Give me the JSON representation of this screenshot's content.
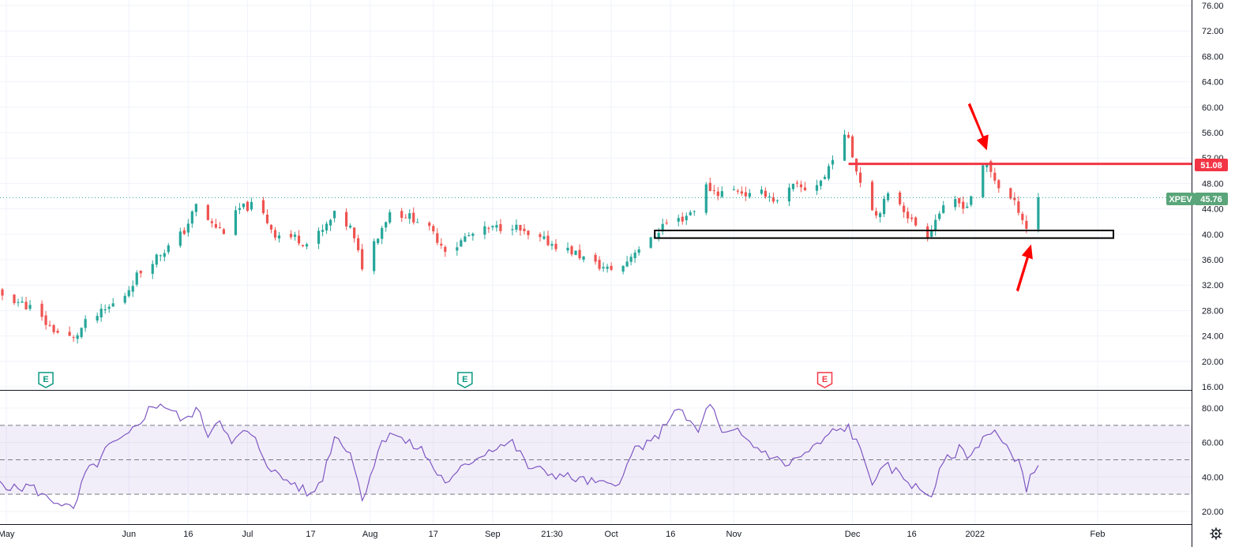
{
  "chart_data": [
    {
      "type": "candlestick",
      "symbol": "XPEV",
      "last_price": "45.76",
      "resistance_label": "51.08",
      "resistance_level": 51.08,
      "support_zone": [
        39.4,
        40.6
      ],
      "support_zone_span": [
        "2021-10-12",
        "2022-02-05"
      ],
      "resistance_span": [
        "2021-11-30",
        "2022-02-16"
      ],
      "ylim": [
        16,
        76
      ],
      "y_tick_labels": [
        "76.00",
        "72.00",
        "68.00",
        "64.00",
        "60.00",
        "56.00",
        "52.00",
        "48.00",
        "44.00",
        "40.00",
        "36.00",
        "32.00",
        "28.00",
        "24.00",
        "20.00",
        "16.00"
      ],
      "x_tick_labels": [
        {
          "date": "2021-05-01",
          "label": "May"
        },
        {
          "date": "2021-06-01",
          "label": "Jun"
        },
        {
          "date": "2021-06-16",
          "label": "16"
        },
        {
          "date": "2021-07-01",
          "label": "Jul"
        },
        {
          "date": "2021-07-17",
          "label": "17"
        },
        {
          "date": "2021-08-01",
          "label": "Aug"
        },
        {
          "date": "2021-08-17",
          "label": "17"
        },
        {
          "date": "2021-09-01",
          "label": "Sep"
        },
        {
          "date": "2021-09-16",
          "label": "21:30"
        },
        {
          "date": "2021-10-01",
          "label": "Oct"
        },
        {
          "date": "2021-10-16",
          "label": "16"
        },
        {
          "date": "2021-11-01",
          "label": "Nov"
        },
        {
          "date": "2021-12-01",
          "label": "Dec"
        },
        {
          "date": "2021-12-16",
          "label": "16"
        },
        {
          "date": "2022-01-01",
          "label": "2022"
        },
        {
          "date": "2022-02-01",
          "label": "Feb"
        }
      ],
      "earnings_markers": [
        {
          "date": "2021-05-11",
          "label": "E",
          "color": "#089981"
        },
        {
          "date": "2021-08-25",
          "label": "E",
          "color": "#089981"
        },
        {
          "date": "2021-11-24",
          "label": "E",
          "color": "#f23645"
        }
      ],
      "price_path": [
        [
          "2021-04-25",
          31.5
        ],
        [
          "2021-05-02",
          30.0
        ],
        [
          "2021-05-07",
          28.5
        ],
        [
          "2021-05-11",
          26.0
        ],
        [
          "2021-05-14",
          24.5
        ],
        [
          "2021-05-18",
          23.5
        ],
        [
          "2021-05-21",
          26.0
        ],
        [
          "2021-05-26",
          28.0
        ],
        [
          "2021-05-31",
          30.5
        ],
        [
          "2021-06-03",
          33.5
        ],
        [
          "2021-06-07",
          36.0
        ],
        [
          "2021-06-11",
          38.0
        ],
        [
          "2021-06-15",
          40.5
        ],
        [
          "2021-06-18",
          44.5
        ],
        [
          "2021-06-22",
          41.5
        ],
        [
          "2021-06-25",
          40.5
        ],
        [
          "2021-06-29",
          44.0
        ],
        [
          "2021-07-02",
          44.5
        ],
        [
          "2021-07-05",
          43.0
        ],
        [
          "2021-07-08",
          40.0
        ],
        [
          "2021-07-13",
          39.5
        ],
        [
          "2021-07-16",
          38.5
        ],
        [
          "2021-07-20",
          40.5
        ],
        [
          "2021-07-23",
          43.0
        ],
        [
          "2021-07-27",
          41.0
        ],
        [
          "2021-07-30",
          35.0
        ],
        [
          "2021-08-03",
          40.0
        ],
        [
          "2021-08-06",
          43.5
        ],
        [
          "2021-08-10",
          43.0
        ],
        [
          "2021-08-14",
          42.0
        ],
        [
          "2021-08-17",
          40.0
        ],
        [
          "2021-08-21",
          37.0
        ],
        [
          "2021-08-25",
          39.5
        ],
        [
          "2021-08-29",
          40.5
        ],
        [
          "2021-09-02",
          41.0
        ],
        [
          "2021-09-06",
          41.5
        ],
        [
          "2021-09-10",
          39.5
        ],
        [
          "2021-09-14",
          39.0
        ],
        [
          "2021-09-18",
          38.0
        ],
        [
          "2021-09-22",
          37.0
        ],
        [
          "2021-09-26",
          35.5
        ],
        [
          "2021-09-30",
          34.5
        ],
        [
          "2021-10-04",
          35.0
        ],
        [
          "2021-10-07",
          37.5
        ],
        [
          "2021-10-11",
          39.0
        ],
        [
          "2021-10-14",
          41.5
        ],
        [
          "2021-10-19",
          42.5
        ],
        [
          "2021-10-22",
          44.0
        ],
        [
          "2021-10-25",
          47.5
        ],
        [
          "2021-10-28",
          46.5
        ],
        [
          "2021-11-02",
          47.0
        ],
        [
          "2021-11-05",
          46.0
        ],
        [
          "2021-11-09",
          46.5
        ],
        [
          "2021-11-12",
          45.0
        ],
        [
          "2021-11-16",
          47.5
        ],
        [
          "2021-11-20",
          47.0
        ],
        [
          "2021-11-24",
          49.0
        ],
        [
          "2021-11-27",
          54.0
        ],
        [
          "2021-11-30",
          55.5
        ],
        [
          "2021-12-02",
          50.0
        ],
        [
          "2021-12-04",
          47.0
        ],
        [
          "2021-12-07",
          43.0
        ],
        [
          "2021-12-10",
          46.0
        ],
        [
          "2021-12-13",
          45.0
        ],
        [
          "2021-12-16",
          42.0
        ],
        [
          "2021-12-20",
          40.0
        ],
        [
          "2021-12-23",
          43.5
        ],
        [
          "2021-12-27",
          45.0
        ],
        [
          "2021-12-30",
          44.5
        ],
        [
          "2022-01-02",
          49.5
        ],
        [
          "2022-01-04",
          51.0
        ],
        [
          "2022-01-07",
          47.5
        ],
        [
          "2022-01-10",
          45.5
        ],
        [
          "2022-01-12",
          44.0
        ],
        [
          "2022-01-14",
          41.0
        ],
        [
          "2022-01-17",
          45.76
        ]
      ]
    },
    {
      "type": "line",
      "indicator": "RSI",
      "ylim": [
        16,
        88
      ],
      "y_tick_labels": [
        "80.00",
        "60.00",
        "40.00",
        "20.00"
      ],
      "bands": {
        "upper": 70,
        "middle": 50,
        "lower": 30
      },
      "rsi_path": [
        [
          "2021-04-25",
          45
        ],
        [
          "2021-04-29",
          38
        ],
        [
          "2021-05-03",
          33
        ],
        [
          "2021-05-07",
          35
        ],
        [
          "2021-05-11",
          28
        ],
        [
          "2021-05-15",
          25
        ],
        [
          "2021-05-18",
          20
        ],
        [
          "2021-05-21",
          42
        ],
        [
          "2021-05-24",
          48
        ],
        [
          "2021-05-27",
          58
        ],
        [
          "2021-05-31",
          62
        ],
        [
          "2021-06-03",
          70
        ],
        [
          "2021-06-06",
          79
        ],
        [
          "2021-06-09",
          83
        ],
        [
          "2021-06-12",
          78
        ],
        [
          "2021-06-15",
          72
        ],
        [
          "2021-06-18",
          80
        ],
        [
          "2021-06-21",
          65
        ],
        [
          "2021-06-24",
          75
        ],
        [
          "2021-06-27",
          58
        ],
        [
          "2021-06-30",
          67
        ],
        [
          "2021-07-03",
          61
        ],
        [
          "2021-07-06",
          48
        ],
        [
          "2021-07-09",
          40
        ],
        [
          "2021-07-13",
          36
        ],
        [
          "2021-07-17",
          29
        ],
        [
          "2021-07-20",
          40
        ],
        [
          "2021-07-23",
          64
        ],
        [
          "2021-07-27",
          55
        ],
        [
          "2021-07-30",
          27
        ],
        [
          "2021-08-03",
          55
        ],
        [
          "2021-08-06",
          67
        ],
        [
          "2021-08-10",
          60
        ],
        [
          "2021-08-14",
          56
        ],
        [
          "2021-08-18",
          42
        ],
        [
          "2021-08-21",
          36
        ],
        [
          "2021-08-25",
          47
        ],
        [
          "2021-08-29",
          53
        ],
        [
          "2021-09-02",
          58
        ],
        [
          "2021-09-06",
          60
        ],
        [
          "2021-09-10",
          46
        ],
        [
          "2021-09-14",
          43
        ],
        [
          "2021-09-18",
          41
        ],
        [
          "2021-09-22",
          39
        ],
        [
          "2021-09-26",
          37
        ],
        [
          "2021-09-30",
          35
        ],
        [
          "2021-10-04",
          40
        ],
        [
          "2021-10-07",
          57
        ],
        [
          "2021-10-11",
          59
        ],
        [
          "2021-10-14",
          68
        ],
        [
          "2021-10-17",
          80
        ],
        [
          "2021-10-20",
          74
        ],
        [
          "2021-10-23",
          66
        ],
        [
          "2021-10-26",
          84
        ],
        [
          "2021-10-29",
          64
        ],
        [
          "2021-11-02",
          66
        ],
        [
          "2021-11-06",
          58
        ],
        [
          "2021-11-10",
          53
        ],
        [
          "2021-11-14",
          47
        ],
        [
          "2021-11-18",
          52
        ],
        [
          "2021-11-22",
          58
        ],
        [
          "2021-11-26",
          66
        ],
        [
          "2021-11-30",
          69
        ],
        [
          "2021-12-03",
          55
        ],
        [
          "2021-12-06",
          38
        ],
        [
          "2021-12-10",
          46
        ],
        [
          "2021-12-14",
          40
        ],
        [
          "2021-12-18",
          32
        ],
        [
          "2021-12-21",
          30
        ],
        [
          "2021-12-24",
          48
        ],
        [
          "2021-12-28",
          56
        ],
        [
          "2021-12-31",
          52
        ],
        [
          "2022-01-03",
          64
        ],
        [
          "2022-01-06",
          66
        ],
        [
          "2022-01-09",
          56
        ],
        [
          "2022-01-12",
          50
        ],
        [
          "2022-01-14",
          34
        ],
        [
          "2022-01-17",
          49
        ]
      ]
    }
  ]
}
